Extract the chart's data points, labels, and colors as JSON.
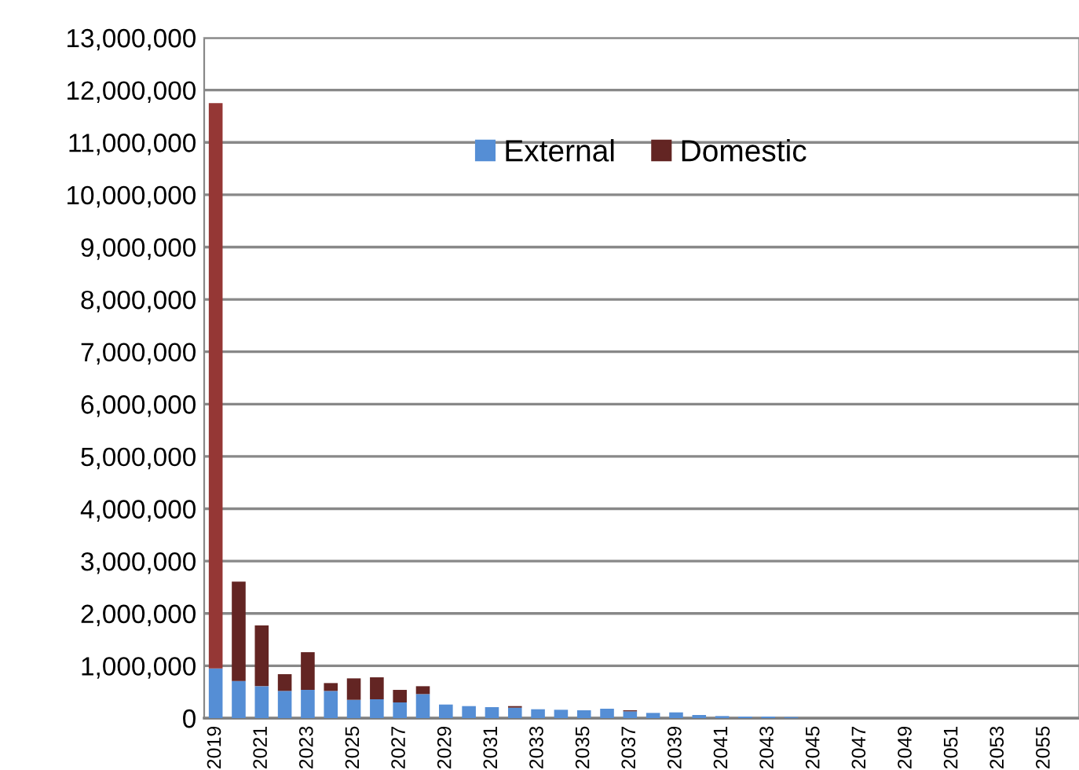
{
  "chart_data": {
    "type": "bar",
    "stacked": true,
    "legend": "top",
    "grid": "y",
    "categories": [
      "2019",
      null,
      "2021",
      null,
      "2023",
      null,
      "2025",
      null,
      "2027",
      null,
      "2029",
      null,
      "2031",
      null,
      "2033",
      null,
      "2035",
      null,
      "2037",
      null,
      "2039",
      null,
      "2041",
      null,
      "2043",
      null,
      "2045",
      null,
      "2047",
      null,
      "2049",
      null,
      "2051",
      null,
      "2053",
      null,
      "2055",
      null
    ],
    "series": [
      {
        "name": "External",
        "color": "#558ed5",
        "values": [
          950000,
          710000,
          610000,
          520000,
          540000,
          520000,
          350000,
          360000,
          300000,
          460000,
          260000,
          230000,
          210000,
          200000,
          170000,
          160000,
          150000,
          180000,
          130000,
          100000,
          110000,
          60000,
          40000,
          30000,
          30000,
          20000,
          0,
          0,
          0,
          0,
          0,
          0,
          0,
          0,
          0,
          0,
          0,
          0
        ]
      },
      {
        "name": "Domestic",
        "color": "#632523",
        "colors": [
          "#953735",
          "#632523",
          "#632523",
          "#632523",
          "#632523",
          "#632523",
          "#632523",
          "#632523",
          "#632523",
          "#632523",
          "#632523",
          "#632523",
          "#632523",
          "#632523",
          "#632523",
          "#632523",
          "#632523",
          "#632523",
          "#632523",
          "#632523",
          "#632523",
          "#632523",
          "#632523",
          "#632523",
          "#632523",
          "#632523",
          "#632523",
          "#632523",
          "#632523",
          "#632523",
          "#632523",
          "#632523",
          "#632523",
          "#632523",
          "#632523",
          "#632523",
          "#632523",
          "#632523"
        ],
        "values": [
          10800000,
          1900000,
          1160000,
          320000,
          720000,
          150000,
          410000,
          420000,
          240000,
          150000,
          0,
          0,
          0,
          30000,
          0,
          0,
          0,
          0,
          20000,
          0,
          0,
          0,
          0,
          0,
          0,
          0,
          0,
          0,
          0,
          0,
          0,
          0,
          0,
          0,
          0,
          0,
          0,
          0
        ]
      }
    ],
    "ylim": [
      0,
      13000000
    ],
    "yticks": [
      0,
      {
        "value": 1000000,
        "label": "1,000,000"
      },
      {
        "value": 2000000,
        "label": "2,000,000"
      },
      {
        "value": 3000000,
        "label": "3,000,000"
      },
      {
        "value": 4000000,
        "label": "4,000,000"
      },
      {
        "value": 5000000,
        "label": "5,000,000"
      },
      {
        "value": 6000000,
        "label": "6,000,000"
      },
      {
        "value": 7000000,
        "label": "7,000,000"
      },
      {
        "value": 8000000,
        "label": "8,000,000"
      },
      {
        "value": 9000000,
        "label": "9,000,000"
      },
      {
        "value": 10000000,
        "label": "10,000,000"
      },
      {
        "value": 11000000,
        "label": "11,000,000"
      },
      {
        "value": 12000000,
        "label": "12,000,000"
      },
      {
        "value": 13000000,
        "label": "13,000,000"
      }
    ]
  }
}
